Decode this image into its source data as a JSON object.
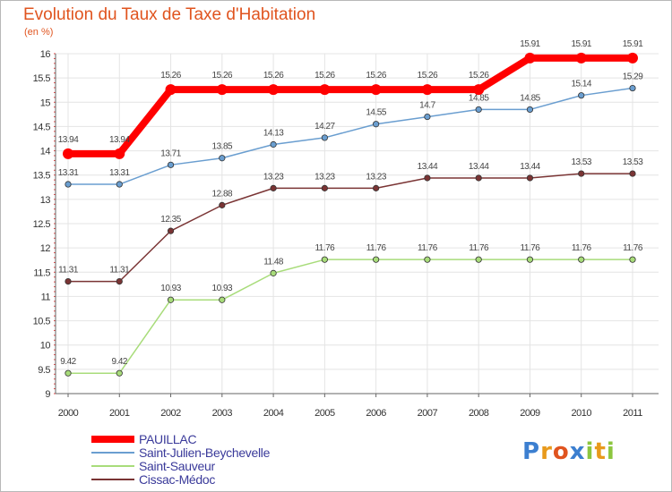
{
  "chart_data": {
    "type": "line",
    "title": "Evolution du Taux de Taxe d'Habitation",
    "ylabel": "(en %)",
    "xlabel": "",
    "categories": [
      "2000",
      "2001",
      "2002",
      "2003",
      "2004",
      "2005",
      "2006",
      "2007",
      "2008",
      "2009",
      "2010",
      "2011"
    ],
    "ylim": [
      9,
      16
    ],
    "yticks": [
      "9",
      "9.5",
      "10",
      "10.5",
      "11",
      "11.5",
      "12",
      "12.5",
      "13",
      "13.5",
      "14",
      "14.5",
      "15",
      "15.5",
      "16"
    ],
    "grid": true,
    "legend_position": "bottom-left",
    "series": [
      {
        "name": "PAUILLAC",
        "color": "#ff0000",
        "values": [
          13.94,
          13.94,
          15.26,
          15.26,
          15.26,
          15.26,
          15.26,
          15.26,
          15.26,
          15.91,
          15.91,
          15.91
        ],
        "labels": [
          "13.94",
          "13.94",
          "15.26",
          "15.26",
          "15.26",
          "15.26",
          "15.26",
          "15.26",
          "15.26",
          "15.91",
          "15.91",
          "15.91"
        ]
      },
      {
        "name": "Saint-Julien-Beychevelle",
        "color": "#6a9ed0",
        "values": [
          13.31,
          13.31,
          13.71,
          13.85,
          14.13,
          14.27,
          14.55,
          14.7,
          14.85,
          14.85,
          15.14,
          15.29
        ],
        "labels": [
          "13.31",
          "13.31",
          "13.71",
          "13.85",
          "14.13",
          "14.27",
          "14.55",
          "14.7",
          "14.85",
          "14.85",
          "15.14",
          "15.29"
        ]
      },
      {
        "name": "Saint-Sauveur",
        "color": "#a8dc7a",
        "values": [
          9.42,
          9.42,
          10.93,
          10.93,
          11.48,
          11.76,
          11.76,
          11.76,
          11.76,
          11.76,
          11.76,
          11.76
        ],
        "labels": [
          "9.42",
          "9.42",
          "10.93",
          "10.93",
          "11.48",
          "11.76",
          "11.76",
          "11.76",
          "11.76",
          "11.76",
          "11.76",
          "11.76"
        ]
      },
      {
        "name": "Cissac-Médoc",
        "color": "#7a3434",
        "values": [
          11.31,
          11.31,
          12.35,
          12.88,
          13.23,
          13.23,
          13.23,
          13.44,
          13.44,
          13.44,
          13.53,
          13.53
        ],
        "labels": [
          "11.31",
          "11.31",
          "12.35",
          "12.88",
          "13.23",
          "13.23",
          "13.23",
          "13.44",
          "13.44",
          "13.44",
          "13.53",
          "13.53"
        ]
      }
    ]
  },
  "logo": {
    "letters": [
      "P",
      "r",
      "o",
      "x",
      "i",
      "t",
      "i"
    ],
    "colors": [
      "#3c7fd0",
      "#e89a1c",
      "#e0541f",
      "#3c7fd0",
      "#8cc63f",
      "#e89a1c",
      "#8cc63f"
    ]
  }
}
